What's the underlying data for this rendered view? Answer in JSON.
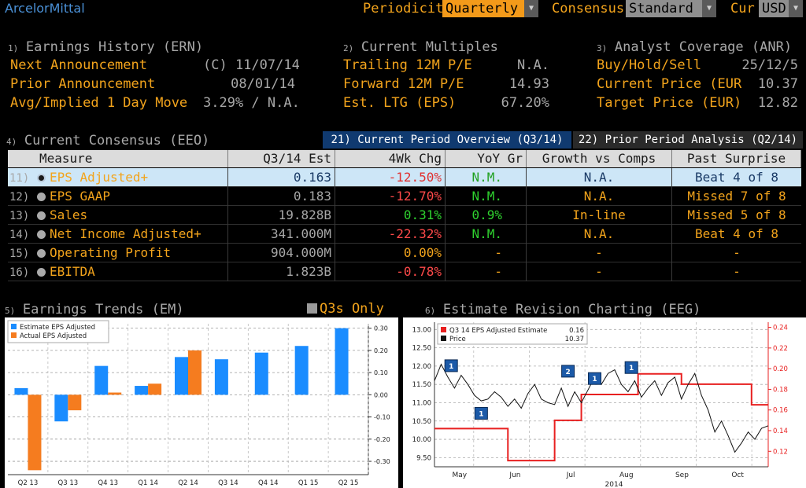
{
  "header": {
    "company": "ArcelorMittal",
    "periodicity_label": "Periodicity",
    "periodicity_value": "Quarterly",
    "consensus_label": "Consensus",
    "consensus_value": "Standard",
    "cur_label": "Cur",
    "cur_value": "USD"
  },
  "earnings_history": {
    "num": "1)",
    "title": "Earnings History (ERN)",
    "rows": [
      {
        "label": "Next Announcement",
        "value": "(C)  11/07/14"
      },
      {
        "label": "Prior Announcement",
        "value": "08/01/14"
      },
      {
        "label": "Avg/Implied 1 Day Move",
        "value": "3.29% / N.A."
      }
    ]
  },
  "current_multiples": {
    "num": "2)",
    "title": "Current Multiples",
    "rows": [
      {
        "label": "Trailing 12M P/E",
        "value": "N.A."
      },
      {
        "label": "Forward 12M P/E",
        "value": "14.93"
      },
      {
        "label": "Est. LTG (EPS)",
        "value": "67.20%"
      }
    ]
  },
  "analyst_coverage": {
    "num": "3)",
    "title": "Analyst Coverage (ANR)",
    "rows": [
      {
        "label": "Buy/Hold/Sell",
        "value": "25/12/5"
      },
      {
        "label": "Current Price (EUR",
        "value": "10.37"
      },
      {
        "label": "Target Price (EUR)",
        "value": "12.82"
      }
    ]
  },
  "consensus": {
    "num": "4)",
    "title": "Current Consensus (EEO)",
    "tab_active": "21) Current Period Overview (Q3/14)",
    "tab_inactive": "22) Prior Period Analysis (Q2/14)",
    "columns": [
      "Measure",
      "Q3/14 Est",
      "4Wk Chg",
      "YoY Gr",
      "Growth vs Comps",
      "Past Surprise"
    ],
    "rows": [
      {
        "num": "11)",
        "measure": "EPS Adjusted+",
        "est": "0.163",
        "chg": "-12.50%",
        "yoy": "N.M.",
        "comps": "N.A.",
        "surprise": "Beat 4 of 8"
      },
      {
        "num": "12)",
        "measure": "EPS GAAP",
        "est": "0.183",
        "chg": "-12.70%",
        "yoy": "N.M.",
        "comps": "N.A.",
        "surprise": "Missed 7 of 8"
      },
      {
        "num": "13)",
        "measure": "Sales",
        "est": "19.828B",
        "chg": "0.31%",
        "yoy": "0.9%",
        "comps": "In-line",
        "surprise": "Missed 5 of 8"
      },
      {
        "num": "14)",
        "measure": "Net Income Adjusted+",
        "est": "341.000M",
        "chg": "-22.32%",
        "yoy": "N.M.",
        "comps": "N.A.",
        "surprise": "Beat 4 of 8"
      },
      {
        "num": "15)",
        "measure": "Operating Profit",
        "est": "904.000M",
        "chg": "0.00%",
        "yoy": "-",
        "comps": "-",
        "surprise": "-"
      },
      {
        "num": "16)",
        "measure": "EBITDA",
        "est": "1.823B",
        "chg": "-0.78%",
        "yoy": "-",
        "comps": "-",
        "surprise": "-"
      }
    ],
    "chg_colors": [
      "red",
      "red",
      "grn",
      "red",
      "yel",
      "red"
    ],
    "yoy_colors": [
      "grn",
      "grn",
      "grn",
      "grn",
      "yel",
      "yel"
    ]
  },
  "earnings_trends": {
    "num": "5)",
    "title": "Earnings Trends (EM)",
    "toggle_label": "Q3s Only"
  },
  "estimate_revision": {
    "num": "6)",
    "title": "Estimate Revision Charting (EEG)"
  },
  "chart_data": [
    {
      "type": "bar",
      "categories": [
        "Q2 13",
        "Q3 13",
        "Q4 13",
        "Q1 14",
        "Q2 14",
        "Q3 14",
        "Q4 14",
        "Q1 15",
        "Q2 15"
      ],
      "series": [
        {
          "name": "Estimate EPS Adjusted",
          "color": "#1a8cff",
          "values": [
            0.03,
            -0.12,
            0.13,
            0.04,
            0.17,
            0.16,
            0.19,
            0.22,
            0.3
          ]
        },
        {
          "name": "Actual EPS Adjusted",
          "color": "#f57c1f",
          "values": [
            -0.34,
            -0.07,
            0.01,
            0.05,
            0.2,
            null,
            null,
            null,
            null
          ]
        }
      ],
      "ylim": [
        -0.36,
        0.32
      ],
      "yticks": [
        "0.30",
        "0.20",
        "0.10",
        "0.00",
        "-0.10",
        "-0.20",
        "-0.30"
      ],
      "ytick_values": [
        0.3,
        0.2,
        0.1,
        0.0,
        -0.1,
        -0.2,
        -0.3
      ]
    },
    {
      "type": "line",
      "x_labels": [
        "May",
        "Jun",
        "Jul",
        "Aug",
        "Sep",
        "Oct"
      ],
      "x_sublabel": "2014",
      "left_axis": {
        "ticks": [
          "13.00",
          "12.50",
          "12.00",
          "11.50",
          "11.00",
          "10.50",
          "10.00",
          "9.50"
        ],
        "values": [
          13.0,
          12.5,
          12.0,
          11.5,
          11.0,
          10.5,
          10.0,
          9.5
        ],
        "ylim": [
          9.25,
          13.2
        ]
      },
      "right_axis": {
        "ticks": [
          "0.24",
          "0.22",
          "0.20",
          "0.18",
          "0.16",
          "0.14",
          "0.12"
        ],
        "values": [
          0.24,
          0.22,
          0.2,
          0.18,
          0.16,
          0.14,
          0.12
        ],
        "ylim": [
          0.105,
          0.245
        ]
      },
      "series": [
        {
          "name": "Q3 14 EPS Adjusted Estimate",
          "legend_value": "0.16",
          "color": "#e82020",
          "axis": "right",
          "x": [
            0.0,
            0.22,
            0.22,
            0.36,
            0.36,
            0.44,
            0.44,
            0.61,
            0.61,
            0.74,
            0.74,
            0.95,
            0.95,
            1.0
          ],
          "values": [
            0.142,
            0.142,
            0.111,
            0.111,
            0.15,
            0.15,
            0.175,
            0.175,
            0.195,
            0.195,
            0.185,
            0.185,
            0.165,
            0.165
          ]
        },
        {
          "name": "Price",
          "legend_value": "10.37",
          "color": "#111111",
          "axis": "left",
          "x": [
            0.0,
            0.02,
            0.04,
            0.06,
            0.08,
            0.1,
            0.12,
            0.14,
            0.16,
            0.18,
            0.2,
            0.22,
            0.24,
            0.26,
            0.28,
            0.3,
            0.32,
            0.34,
            0.36,
            0.38,
            0.4,
            0.42,
            0.44,
            0.46,
            0.48,
            0.5,
            0.52,
            0.54,
            0.56,
            0.58,
            0.6,
            0.62,
            0.64,
            0.66,
            0.68,
            0.7,
            0.72,
            0.74,
            0.76,
            0.78,
            0.8,
            0.82,
            0.84,
            0.86,
            0.88,
            0.9,
            0.92,
            0.94,
            0.96,
            0.98,
            1.0
          ],
          "values": [
            11.6,
            12.05,
            11.7,
            11.4,
            11.75,
            11.5,
            11.2,
            11.05,
            11.1,
            11.3,
            11.15,
            10.9,
            11.1,
            10.85,
            11.25,
            11.5,
            11.1,
            11.0,
            10.95,
            11.4,
            10.9,
            11.3,
            11.0,
            11.35,
            11.7,
            11.5,
            11.8,
            11.9,
            11.5,
            11.3,
            11.6,
            11.15,
            11.4,
            11.6,
            11.2,
            11.55,
            11.7,
            11.1,
            11.5,
            11.8,
            11.2,
            10.8,
            10.2,
            10.5,
            10.1,
            9.65,
            9.9,
            10.2,
            10.0,
            10.3,
            10.37
          ]
        }
      ],
      "flags": [
        "1",
        "1",
        "2",
        "1",
        "1"
      ],
      "flag_x": [
        0.05,
        0.14,
        0.4,
        0.48,
        0.59
      ],
      "flag_values": [
        12.0,
        10.7,
        11.85,
        11.65,
        11.95
      ]
    }
  ]
}
